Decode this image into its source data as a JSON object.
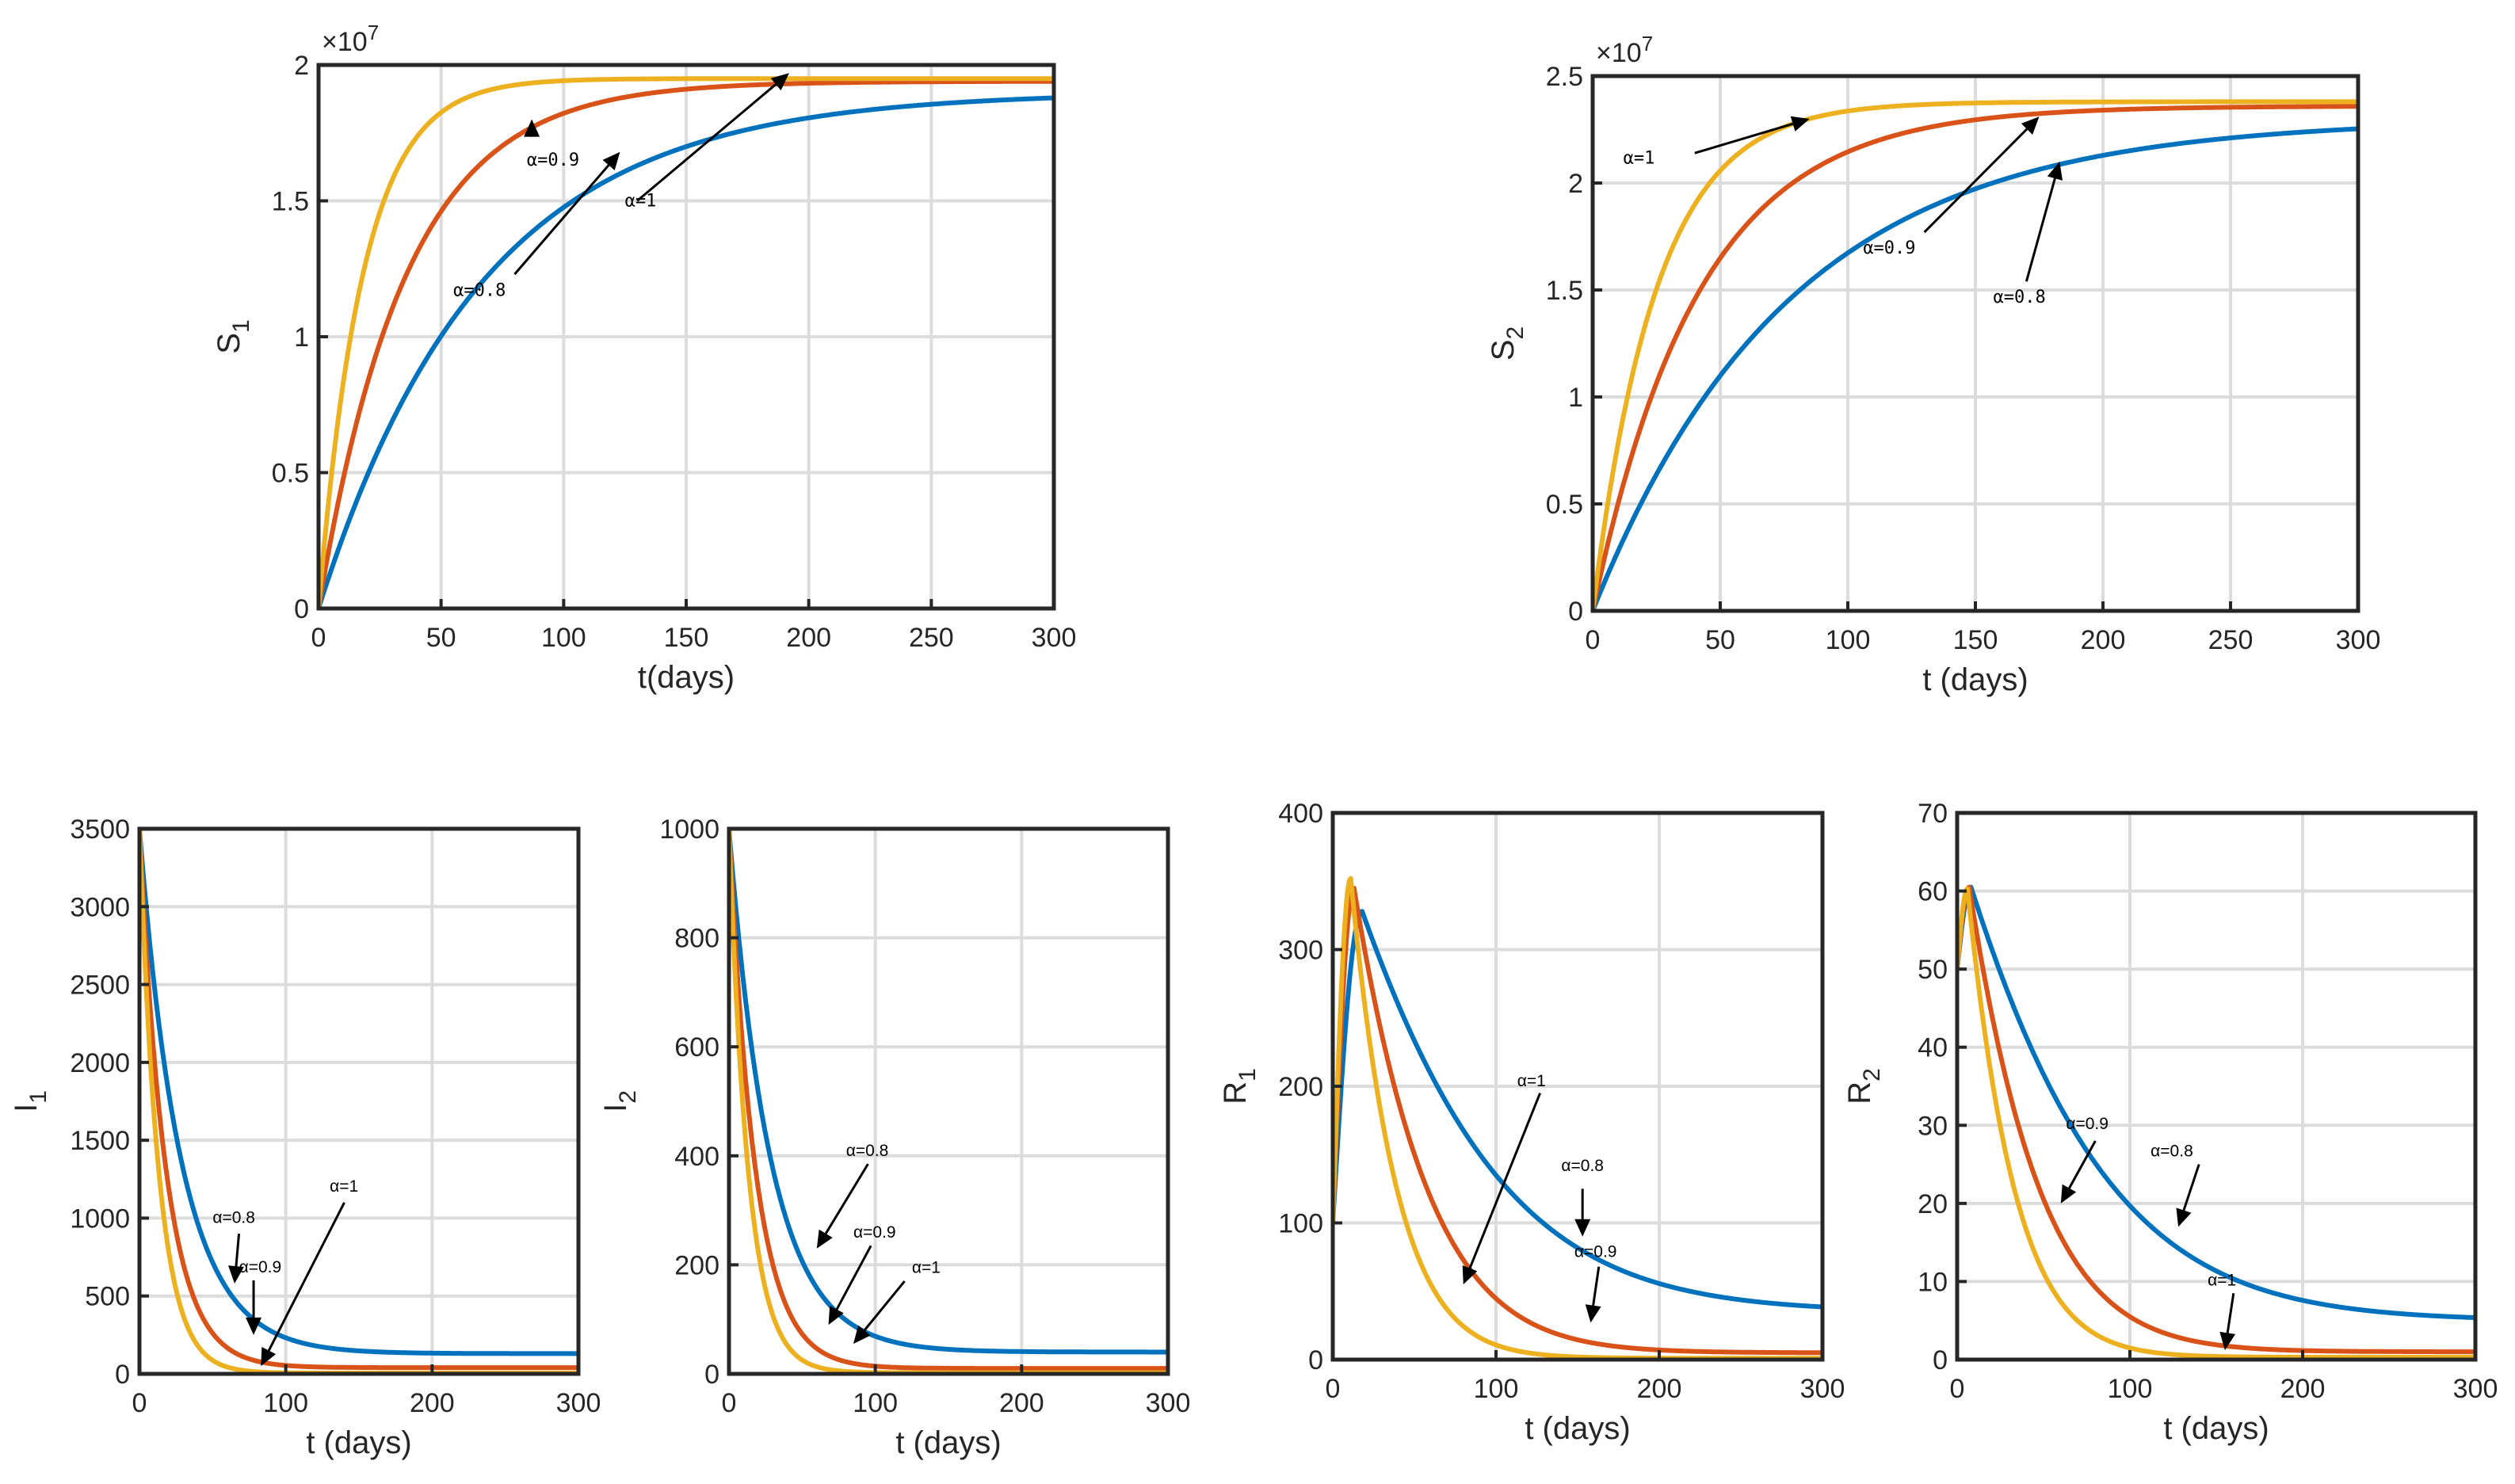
{
  "colors": {
    "alpha_0_8": "#0072BD",
    "alpha_0_9": "#D95319",
    "alpha_1": "#EDB120"
  },
  "chart_data": [
    {
      "id": "S1",
      "type": "line",
      "xlabel": "t(days)",
      "ylabel": "S",
      "ylabel_sub": "1",
      "exponent": "×10",
      "exponent_power": "7",
      "xlim": [
        0,
        300
      ],
      "ylim": [
        0,
        2
      ],
      "xticks": [
        0,
        50,
        100,
        150,
        200,
        250,
        300
      ],
      "xticklabels": [
        "0",
        "50",
        "100",
        "150",
        "200",
        "250",
        "300"
      ],
      "yticks": [
        0,
        0.5,
        1,
        1.5,
        2
      ],
      "yticklabels": [
        "0",
        "0.5",
        "1",
        "1.5",
        "2"
      ],
      "series": [
        {
          "name": "α=0.8",
          "color": "#0072BD",
          "model": "rise",
          "y0": 0,
          "yend": 1.9,
          "k": 0.015
        },
        {
          "name": "α=0.9",
          "color": "#D95319",
          "model": "rise",
          "y0": 0,
          "yend": 1.94,
          "k": 0.028
        },
        {
          "name": "α=1",
          "color": "#EDB120",
          "model": "rise",
          "y0": 0,
          "yend": 1.95,
          "k": 0.055
        }
      ],
      "annotations": [
        {
          "text": "α=0.9",
          "tx": 85,
          "ty": 1.63,
          "ax": 87,
          "ay": 1.75,
          "hx": 87,
          "hy": 1.8
        },
        {
          "text": "α=1",
          "tx": 125,
          "ty": 1.48,
          "ax": 130,
          "ay": 1.5,
          "hx": 192,
          "hy": 1.97
        },
        {
          "text": "α=0.8",
          "tx": 55,
          "ty": 1.15,
          "ax": 80,
          "ay": 1.23,
          "hx": 123,
          "hy": 1.68
        }
      ]
    },
    {
      "id": "S2",
      "type": "line",
      "xlabel": "t (days)",
      "ylabel": "S",
      "ylabel_sub": "2",
      "exponent": "×10",
      "exponent_power": "7",
      "xlim": [
        0,
        300
      ],
      "ylim": [
        0,
        2.5
      ],
      "xticks": [
        0,
        50,
        100,
        150,
        200,
        250,
        300
      ],
      "xticklabels": [
        "0",
        "50",
        "100",
        "150",
        "200",
        "250",
        "300"
      ],
      "yticks": [
        0,
        0.5,
        1,
        1.5,
        2,
        2.5
      ],
      "yticklabels": [
        "0",
        "0.5",
        "1",
        "1.5",
        "2",
        "2.5"
      ],
      "series": [
        {
          "name": "α=0.8",
          "color": "#0072BD",
          "model": "rise",
          "y0": 0,
          "yend": 2.3,
          "k": 0.013
        },
        {
          "name": "α=0.9",
          "color": "#D95319",
          "model": "rise",
          "y0": 0,
          "yend": 2.36,
          "k": 0.024
        },
        {
          "name": "α=1",
          "color": "#EDB120",
          "model": "rise",
          "y0": 0,
          "yend": 2.38,
          "k": 0.04
        }
      ],
      "annotations": [
        {
          "text": "α=1",
          "tx": 12,
          "ty": 2.09,
          "ax": 40,
          "ay": 2.14,
          "hx": 85,
          "hy": 2.3
        },
        {
          "text": "α=0.9",
          "tx": 106,
          "ty": 1.67,
          "ax": 130,
          "ay": 1.77,
          "hx": 175,
          "hy": 2.31
        },
        {
          "text": "α=0.8",
          "tx": 157,
          "ty": 1.44,
          "ax": 170,
          "ay": 1.54,
          "hx": 183,
          "hy": 2.1
        }
      ]
    },
    {
      "id": "I1",
      "type": "line",
      "xlabel": "t (days)",
      "ylabel": "I",
      "ylabel_sub": "1",
      "xlim": [
        0,
        300
      ],
      "ylim": [
        0,
        3500
      ],
      "xticks": [
        0,
        100,
        200,
        300
      ],
      "xticklabels": [
        "0",
        "100",
        "200",
        "300"
      ],
      "yticks": [
        0,
        500,
        1000,
        1500,
        2000,
        2500,
        3000,
        3500
      ],
      "yticklabels": [
        "0",
        "500",
        "1000",
        "1500",
        "2000",
        "2500",
        "3000",
        "3500"
      ],
      "series": [
        {
          "name": "α=0.8",
          "color": "#0072BD",
          "model": "decay",
          "y0": 3500,
          "yend": 130,
          "k": 0.035
        },
        {
          "name": "α=0.9",
          "color": "#D95319",
          "model": "decay",
          "y0": 3500,
          "yend": 40,
          "k": 0.055
        },
        {
          "name": "α=1",
          "color": "#EDB120",
          "model": "decay",
          "y0": 3500,
          "yend": 5,
          "k": 0.075
        }
      ],
      "annotations": [
        {
          "text": "α=0.8",
          "tx": 50,
          "ty": 970,
          "ax": 68,
          "ay": 900,
          "hx": 65,
          "hy": 580
        },
        {
          "text": "α=0.9",
          "tx": 68,
          "ty": 650,
          "ax": 78,
          "ay": 600,
          "hx": 78,
          "hy": 250
        },
        {
          "text": "α=1",
          "tx": 130,
          "ty": 1170,
          "ax": 140,
          "ay": 1100,
          "hx": 83,
          "hy": 50
        }
      ]
    },
    {
      "id": "I2",
      "type": "line",
      "xlabel": "t (days)",
      "ylabel": "I",
      "ylabel_sub": "2",
      "xlim": [
        0,
        300
      ],
      "ylim": [
        0,
        1000
      ],
      "xticks": [
        0,
        100,
        200,
        300
      ],
      "xticklabels": [
        "0",
        "100",
        "200",
        "300"
      ],
      "yticks": [
        0,
        200,
        400,
        600,
        800,
        1000
      ],
      "yticklabels": [
        "0",
        "200",
        "400",
        "600",
        "800",
        "1000"
      ],
      "series": [
        {
          "name": "α=0.8",
          "color": "#0072BD",
          "model": "decay",
          "y0": 1000,
          "yend": 40,
          "k": 0.035
        },
        {
          "name": "α=0.9",
          "color": "#D95319",
          "model": "decay",
          "y0": 1000,
          "yend": 10,
          "k": 0.055
        },
        {
          "name": "α=1",
          "color": "#EDB120",
          "model": "decay",
          "y0": 1000,
          "yend": 2,
          "k": 0.075
        }
      ],
      "annotations": [
        {
          "text": "α=0.8",
          "tx": 80,
          "ty": 400,
          "ax": 95,
          "ay": 385,
          "hx": 60,
          "hy": 230
        },
        {
          "text": "α=0.9",
          "tx": 85,
          "ty": 250,
          "ax": 97,
          "ay": 235,
          "hx": 68,
          "hy": 90
        },
        {
          "text": "α=1",
          "tx": 125,
          "ty": 185,
          "ax": 120,
          "ay": 170,
          "hx": 85,
          "hy": 55
        }
      ]
    },
    {
      "id": "R1",
      "type": "line",
      "xlabel": "t (days)",
      "ylabel": "R",
      "ylabel_sub": "1",
      "xlim": [
        0,
        300
      ],
      "ylim": [
        0,
        400
      ],
      "xticks": [
        0,
        100,
        200,
        300
      ],
      "xticklabels": [
        "0",
        "100",
        "200",
        "300"
      ],
      "yticks": [
        0,
        100,
        200,
        300,
        400
      ],
      "yticklabels": [
        "0",
        "100",
        "200",
        "300",
        "400"
      ],
      "series": [
        {
          "name": "α=0.8",
          "color": "#0072BD",
          "model": "peak",
          "y0": 100,
          "peak": 328,
          "tpeak": 18,
          "tail": 35,
          "k": 0.0115
        },
        {
          "name": "α=0.9",
          "color": "#D95319",
          "model": "peak",
          "y0": 100,
          "peak": 345,
          "tpeak": 13,
          "tail": 5,
          "k": 0.0215
        },
        {
          "name": "α=1",
          "color": "#EDB120",
          "model": "peak",
          "y0": 100,
          "peak": 352,
          "tpeak": 11,
          "tail": 1,
          "k": 0.035
        }
      ],
      "annotations": [
        {
          "text": "α=1",
          "tx": 113,
          "ty": 200,
          "ax": 127,
          "ay": 195,
          "hx": 80,
          "hy": 55
        },
        {
          "text": "α=0.8",
          "tx": 140,
          "ty": 138,
          "ax": 153,
          "ay": 125,
          "hx": 153,
          "hy": 90
        },
        {
          "text": "α=0.9",
          "tx": 148,
          "ty": 75,
          "ax": 163,
          "ay": 68,
          "hx": 158,
          "hy": 27
        }
      ]
    },
    {
      "id": "R2",
      "type": "line",
      "xlabel": "t (days)",
      "ylabel": "R",
      "ylabel_sub": "2",
      "xlim": [
        0,
        300
      ],
      "ylim": [
        0,
        70
      ],
      "xticks": [
        0,
        100,
        200,
        300
      ],
      "xticklabels": [
        "0",
        "100",
        "200",
        "300"
      ],
      "yticks": [
        0,
        10,
        20,
        30,
        40,
        50,
        60,
        70
      ],
      "yticklabels": [
        "0",
        "10",
        "20",
        "30",
        "40",
        "50",
        "60",
        "70"
      ],
      "series": [
        {
          "name": "α=0.8",
          "color": "#0072BD",
          "model": "peak",
          "y0": 50,
          "peak": 60.5,
          "tpeak": 8,
          "tail": 5,
          "k": 0.0125
        },
        {
          "name": "α=0.9",
          "color": "#D95319",
          "model": "peak",
          "y0": 50,
          "peak": 60.5,
          "tpeak": 7,
          "tail": 1,
          "k": 0.024
        },
        {
          "name": "α=1",
          "color": "#EDB120",
          "model": "peak",
          "y0": 50,
          "peak": 60.3,
          "tpeak": 6,
          "tail": 0.3,
          "k": 0.036
        }
      ],
      "annotations": [
        {
          "text": "α=0.9",
          "tx": 63,
          "ty": 29.5,
          "ax": 80,
          "ay": 28,
          "hx": 60,
          "hy": 20
        },
        {
          "text": "α=0.8",
          "tx": 112,
          "ty": 26,
          "ax": 140,
          "ay": 25,
          "hx": 128,
          "hy": 17
        },
        {
          "text": "α=1",
          "tx": 145,
          "ty": 9.5,
          "ax": 160,
          "ay": 8.5,
          "hx": 155,
          "hy": 1.2
        }
      ]
    }
  ]
}
